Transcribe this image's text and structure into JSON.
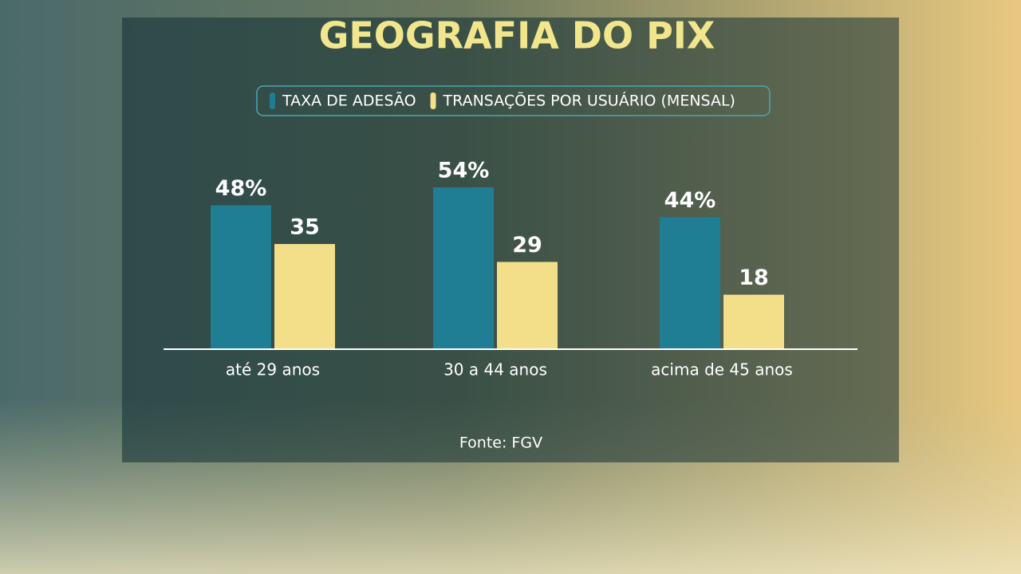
{
  "chart_data": {
    "type": "bar",
    "title": "GEOGRAFIA DO PIX",
    "categories": [
      "até 29 anos",
      "30 a 44 anos",
      "acima de 45 anos"
    ],
    "series": [
      {
        "name": "TAXA DE ADESÃO",
        "color": "#1f7e93",
        "values": [
          48,
          54,
          44
        ],
        "value_labels": [
          "48%",
          "54%",
          "44%"
        ]
      },
      {
        "name": "TRANSAÇÕES POR USUÁRIO (MENSAL)",
        "color": "#f3de8a",
        "values": [
          35,
          29,
          18
        ]
      }
    ],
    "source": "Fonte: FGV"
  }
}
